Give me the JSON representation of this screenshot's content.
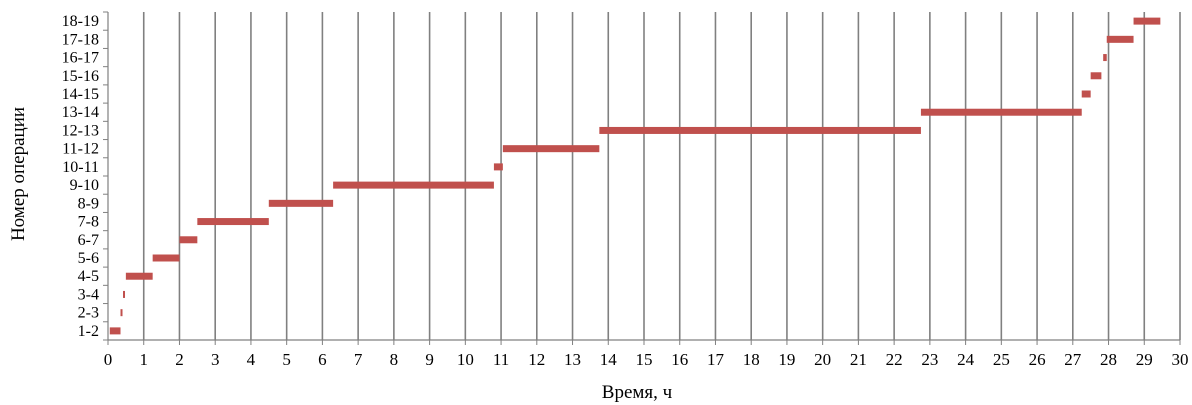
{
  "chart_data": {
    "type": "gantt",
    "xlabel": "Время, ч",
    "ylabel": "Номер операции",
    "xlim": [
      0,
      30
    ],
    "x_ticks": [
      "0",
      "1",
      "2",
      "3",
      "4",
      "5",
      "6",
      "7",
      "8",
      "9",
      "10",
      "11",
      "12",
      "13",
      "14",
      "15",
      "16",
      "17",
      "18",
      "19",
      "20",
      "21",
      "22",
      "23",
      "24",
      "25",
      "26",
      "27",
      "28",
      "29",
      "30"
    ],
    "categories": [
      "1-2",
      "2-3",
      "3-4",
      "4-5",
      "5-6",
      "6-7",
      "7-8",
      "8-9",
      "9-10",
      "10-11",
      "11-12",
      "12-13",
      "13-14",
      "14-15",
      "15-16",
      "16-17",
      "17-18",
      "18-19"
    ],
    "bars": [
      {
        "category": "1-2",
        "start": 0.05,
        "end": 0.35
      },
      {
        "category": "2-3",
        "start": 0.35,
        "end": 0.4
      },
      {
        "category": "3-4",
        "start": 0.42,
        "end": 0.47
      },
      {
        "category": "4-5",
        "start": 0.5,
        "end": 1.25
      },
      {
        "category": "5-6",
        "start": 1.25,
        "end": 2.0
      },
      {
        "category": "6-7",
        "start": 2.0,
        "end": 2.5
      },
      {
        "category": "7-8",
        "start": 2.5,
        "end": 4.5
      },
      {
        "category": "8-9",
        "start": 4.5,
        "end": 6.3
      },
      {
        "category": "9-10",
        "start": 6.3,
        "end": 10.8
      },
      {
        "category": "10-11",
        "start": 10.8,
        "end": 11.05
      },
      {
        "category": "11-12",
        "start": 11.05,
        "end": 13.75
      },
      {
        "category": "12-13",
        "start": 13.75,
        "end": 22.75
      },
      {
        "category": "13-14",
        "start": 22.75,
        "end": 27.25
      },
      {
        "category": "14-15",
        "start": 27.25,
        "end": 27.5
      },
      {
        "category": "15-16",
        "start": 27.5,
        "end": 27.8
      },
      {
        "category": "16-17",
        "start": 27.85,
        "end": 27.95
      },
      {
        "category": "17-18",
        "start": 27.95,
        "end": 28.7
      },
      {
        "category": "18-19",
        "start": 28.7,
        "end": 29.45
      }
    ],
    "grid": "vertical",
    "bar_color": "#c0504d",
    "grid_color": "#808080"
  }
}
